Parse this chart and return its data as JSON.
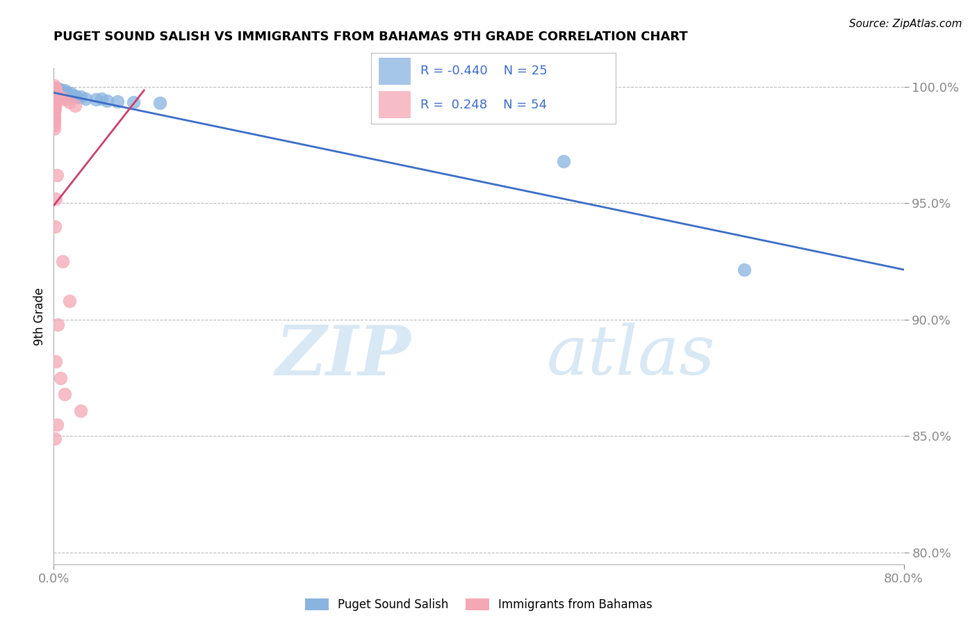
{
  "title": "PUGET SOUND SALISH VS IMMIGRANTS FROM BAHAMAS 9TH GRADE CORRELATION CHART",
  "source": "Source: ZipAtlas.com",
  "ylabel_label": "9th Grade",
  "x_min": 0.0,
  "x_max": 0.8,
  "y_min": 0.795,
  "y_max": 1.008,
  "legend_blue_r": "-0.440",
  "legend_blue_n": "25",
  "legend_pink_r": " 0.248",
  "legend_pink_n": "54",
  "blue_color": "#89B4E0",
  "pink_color": "#F4A7B5",
  "trend_blue_color": "#3B6CC7",
  "trend_pink_color": "#C94070",
  "watermark_zip": "ZIP",
  "watermark_atlas": "atlas",
  "blue_points": [
    [
      0.001,
      0.9995
    ],
    [
      0.003,
      0.9985
    ],
    [
      0.004,
      0.999
    ],
    [
      0.005,
      0.9992
    ],
    [
      0.005,
      0.998
    ],
    [
      0.006,
      0.9975
    ],
    [
      0.007,
      0.9982
    ],
    [
      0.008,
      0.9978
    ],
    [
      0.009,
      0.997
    ],
    [
      0.01,
      0.9985
    ],
    [
      0.012,
      0.9975
    ],
    [
      0.015,
      0.9968
    ],
    [
      0.016,
      0.9972
    ],
    [
      0.02,
      0.996
    ],
    [
      0.022,
      0.9955
    ],
    [
      0.025,
      0.9958
    ],
    [
      0.03,
      0.995
    ],
    [
      0.04,
      0.9945
    ],
    [
      0.045,
      0.9948
    ],
    [
      0.05,
      0.994
    ],
    [
      0.06,
      0.9938
    ],
    [
      0.075,
      0.9935
    ],
    [
      0.1,
      0.993
    ],
    [
      0.48,
      0.968
    ],
    [
      0.65,
      0.9215
    ]
  ],
  "pink_points": [
    [
      0.0003,
      1.0005
    ],
    [
      0.0003,
      0.9995
    ],
    [
      0.0003,
      0.9985
    ],
    [
      0.0003,
      0.9975
    ],
    [
      0.0003,
      0.9965
    ],
    [
      0.0003,
      0.9955
    ],
    [
      0.0003,
      0.9945
    ],
    [
      0.0003,
      0.9935
    ],
    [
      0.0003,
      0.992
    ],
    [
      0.0003,
      0.991
    ],
    [
      0.0003,
      0.99
    ],
    [
      0.0003,
      0.9888
    ],
    [
      0.0003,
      0.9875
    ],
    [
      0.0003,
      0.9862
    ],
    [
      0.0003,
      0.985
    ],
    [
      0.0003,
      0.9835
    ],
    [
      0.0003,
      0.982
    ],
    [
      0.0008,
      0.9998
    ],
    [
      0.0008,
      0.9985
    ],
    [
      0.0008,
      0.997
    ],
    [
      0.0008,
      0.9958
    ],
    [
      0.0008,
      0.9945
    ],
    [
      0.0008,
      0.9932
    ],
    [
      0.0008,
      0.9918
    ],
    [
      0.0008,
      0.9905
    ],
    [
      0.0015,
      0.999
    ],
    [
      0.0015,
      0.9975
    ],
    [
      0.0015,
      0.996
    ],
    [
      0.0015,
      0.9948
    ],
    [
      0.0015,
      0.9935
    ],
    [
      0.002,
      0.998
    ],
    [
      0.002,
      0.9962
    ],
    [
      0.002,
      0.9948
    ],
    [
      0.003,
      0.997
    ],
    [
      0.003,
      0.9955
    ],
    [
      0.004,
      0.9965
    ],
    [
      0.004,
      0.995
    ],
    [
      0.005,
      0.996
    ],
    [
      0.007,
      0.9952
    ],
    [
      0.01,
      0.9945
    ],
    [
      0.015,
      0.9935
    ],
    [
      0.02,
      0.992
    ],
    [
      0.003,
      0.962
    ],
    [
      0.002,
      0.952
    ],
    [
      0.001,
      0.94
    ],
    [
      0.008,
      0.925
    ],
    [
      0.015,
      0.908
    ],
    [
      0.004,
      0.898
    ],
    [
      0.002,
      0.882
    ],
    [
      0.006,
      0.875
    ],
    [
      0.01,
      0.868
    ],
    [
      0.025,
      0.861
    ],
    [
      0.003,
      0.855
    ],
    [
      0.001,
      0.849
    ]
  ],
  "blue_trend_x0": 0.0,
  "blue_trend_x1": 0.8,
  "blue_trend_y0": 0.9975,
  "blue_trend_y1": 0.9215,
  "pink_trend_x0": 0.0,
  "pink_trend_x1": 0.085,
  "pink_trend_y0": 0.949,
  "pink_trend_y1": 0.9985,
  "background_color": "#FFFFFF",
  "grid_color": "#BBBBBB"
}
